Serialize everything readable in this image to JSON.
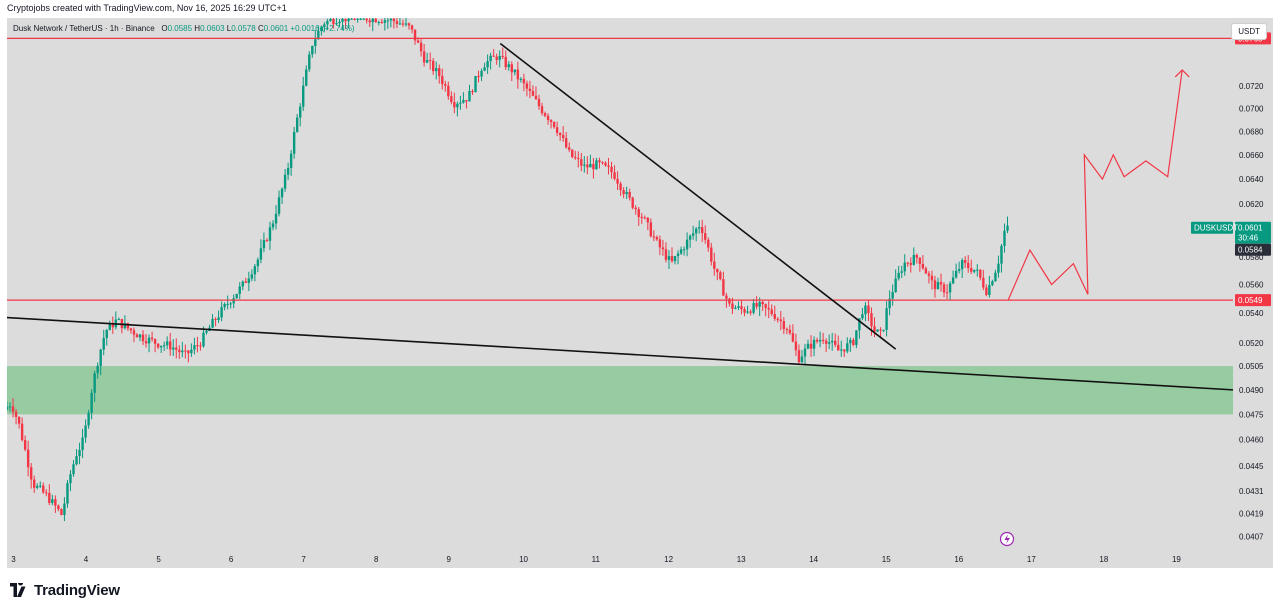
{
  "header": {
    "caption": "Cryptojobs created with TradingView.com, Nov 16, 2025 16:29 UTC+1"
  },
  "legend": {
    "symbol": "Dusk Network / TetherUS · 1h · Binance",
    "open_label": "O",
    "open": "0.0585",
    "high_label": "H",
    "high": "0.0603",
    "low_label": "L",
    "low": "0.0578",
    "close_label": "C",
    "close": "0.0601",
    "change": "+0.0016 (+2.74%)"
  },
  "currency_button": "USDT",
  "footer": {
    "brand": "TradingView"
  },
  "colors": {
    "up": "#089981",
    "down": "#f23645",
    "level_line": "#f23645",
    "trendline": "#111111",
    "zone": "#8fc99a",
    "projection": "#f23645",
    "background": "#dcdcdc"
  },
  "chart_data": {
    "type": "candlestick",
    "title": "Dusk Network / TetherUS · 1h · Binance",
    "y_scale": "log",
    "ylim": [
      0.04,
      0.0785
    ],
    "x_range_days": [
      2.9,
      19.8
    ],
    "x_tick_labels": [
      {
        "day": 3,
        "label": "3"
      },
      {
        "day": 4,
        "label": "4"
      },
      {
        "day": 5,
        "label": "5"
      },
      {
        "day": 6,
        "label": "6"
      },
      {
        "day": 7,
        "label": "7"
      },
      {
        "day": 8,
        "label": "8"
      },
      {
        "day": 9,
        "label": "9"
      },
      {
        "day": 10,
        "label": "10"
      },
      {
        "day": 11,
        "label": "11"
      },
      {
        "day": 12,
        "label": "12"
      },
      {
        "day": 13,
        "label": "13"
      },
      {
        "day": 14,
        "label": "14"
      },
      {
        "day": 15,
        "label": "15"
      },
      {
        "day": 16,
        "label": "16"
      },
      {
        "day": 17,
        "label": "17"
      },
      {
        "day": 18,
        "label": "18"
      },
      {
        "day": 19,
        "label": "19"
      }
    ],
    "y_tick_labels": [
      "0.0720",
      "0.0700",
      "0.0680",
      "0.0660",
      "0.0640",
      "0.0620",
      "0.0580",
      "0.0560",
      "0.0540",
      "0.0520",
      "0.0505",
      "0.0490",
      "0.0475",
      "0.0460",
      "0.0445",
      "0.0431",
      "0.0419",
      "0.0407"
    ],
    "price_path": [
      [
        2.9,
        0.0478
      ],
      [
        3.0,
        0.0482
      ],
      [
        3.1,
        0.047
      ],
      [
        3.3,
        0.0435
      ],
      [
        3.5,
        0.0428
      ],
      [
        3.7,
        0.0418
      ],
      [
        3.8,
        0.0438
      ],
      [
        3.9,
        0.0452
      ],
      [
        4.0,
        0.046
      ],
      [
        4.1,
        0.0488
      ],
      [
        4.2,
        0.051
      ],
      [
        4.3,
        0.0528
      ],
      [
        4.45,
        0.0535
      ],
      [
        4.6,
        0.053
      ],
      [
        4.8,
        0.0524
      ],
      [
        5.0,
        0.052
      ],
      [
        5.2,
        0.0518
      ],
      [
        5.4,
        0.0512
      ],
      [
        5.6,
        0.052
      ],
      [
        5.8,
        0.0535
      ],
      [
        6.0,
        0.0548
      ],
      [
        6.2,
        0.056
      ],
      [
        6.4,
        0.0578
      ],
      [
        6.6,
        0.0605
      ],
      [
        6.8,
        0.0645
      ],
      [
        7.0,
        0.071
      ],
      [
        7.15,
        0.076
      ],
      [
        7.3,
        0.078
      ],
      [
        7.5,
        0.0785
      ],
      [
        7.7,
        0.0785
      ],
      [
        8.0,
        0.0785
      ],
      [
        8.3,
        0.0782
      ],
      [
        8.5,
        0.0775
      ],
      [
        8.7,
        0.0745
      ],
      [
        8.9,
        0.073
      ],
      [
        9.1,
        0.0705
      ],
      [
        9.3,
        0.071
      ],
      [
        9.5,
        0.074
      ],
      [
        9.7,
        0.0748
      ],
      [
        9.9,
        0.0735
      ],
      [
        10.1,
        0.0718
      ],
      [
        10.3,
        0.07
      ],
      [
        10.5,
        0.0685
      ],
      [
        10.7,
        0.066
      ],
      [
        10.9,
        0.065
      ],
      [
        11.1,
        0.0652
      ],
      [
        11.3,
        0.0645
      ],
      [
        11.5,
        0.0625
      ],
      [
        11.7,
        0.061
      ],
      [
        11.9,
        0.059
      ],
      [
        12.1,
        0.0575
      ],
      [
        12.3,
        0.059
      ],
      [
        12.5,
        0.0605
      ],
      [
        12.7,
        0.057
      ],
      [
        12.9,
        0.0545
      ],
      [
        13.1,
        0.0542
      ],
      [
        13.3,
        0.0545
      ],
      [
        13.5,
        0.054
      ],
      [
        13.7,
        0.053
      ],
      [
        13.85,
        0.051
      ],
      [
        14.0,
        0.0518
      ],
      [
        14.2,
        0.0524
      ],
      [
        14.4,
        0.0515
      ],
      [
        14.6,
        0.052
      ],
      [
        14.75,
        0.0545
      ],
      [
        14.9,
        0.0528
      ],
      [
        15.0,
        0.0525
      ],
      [
        15.1,
        0.055
      ],
      [
        15.3,
        0.0575
      ],
      [
        15.5,
        0.058
      ],
      [
        15.7,
        0.056
      ],
      [
        15.9,
        0.0556
      ],
      [
        16.1,
        0.0575
      ],
      [
        16.3,
        0.057
      ],
      [
        16.45,
        0.0555
      ],
      [
        16.6,
        0.0575
      ],
      [
        16.7,
        0.0601
      ]
    ],
    "current_price": 0.0601,
    "horizontal_levels": [
      {
        "price": 0.0765,
        "label": "0.0765"
      },
      {
        "price": 0.0549,
        "label": "0.0549"
      }
    ],
    "demand_zone": {
      "low": 0.0475,
      "high": 0.0505
    },
    "trendlines": [
      {
        "from": [
          2.9,
          0.0537
        ],
        "to": [
          19.8,
          0.049
        ]
      },
      {
        "from": [
          9.7,
          0.076
        ],
        "to": [
          15.15,
          0.0516
        ]
      }
    ],
    "projection_path": [
      [
        16.7,
        0.0549
      ],
      [
        17.0,
        0.0585
      ],
      [
        17.3,
        0.056
      ],
      [
        17.6,
        0.0575
      ],
      [
        17.8,
        0.0553
      ],
      [
        17.75,
        0.066
      ],
      [
        18.0,
        0.064
      ],
      [
        18.15,
        0.066
      ],
      [
        18.3,
        0.0642
      ],
      [
        18.6,
        0.0655
      ],
      [
        18.9,
        0.0642
      ],
      [
        19.1,
        0.0735
      ]
    ],
    "price_axis_labels": {
      "last_price": "0.0601",
      "countdown": "30:46",
      "ticker": "DUSKUSDT",
      "previous": "0.0584"
    }
  }
}
